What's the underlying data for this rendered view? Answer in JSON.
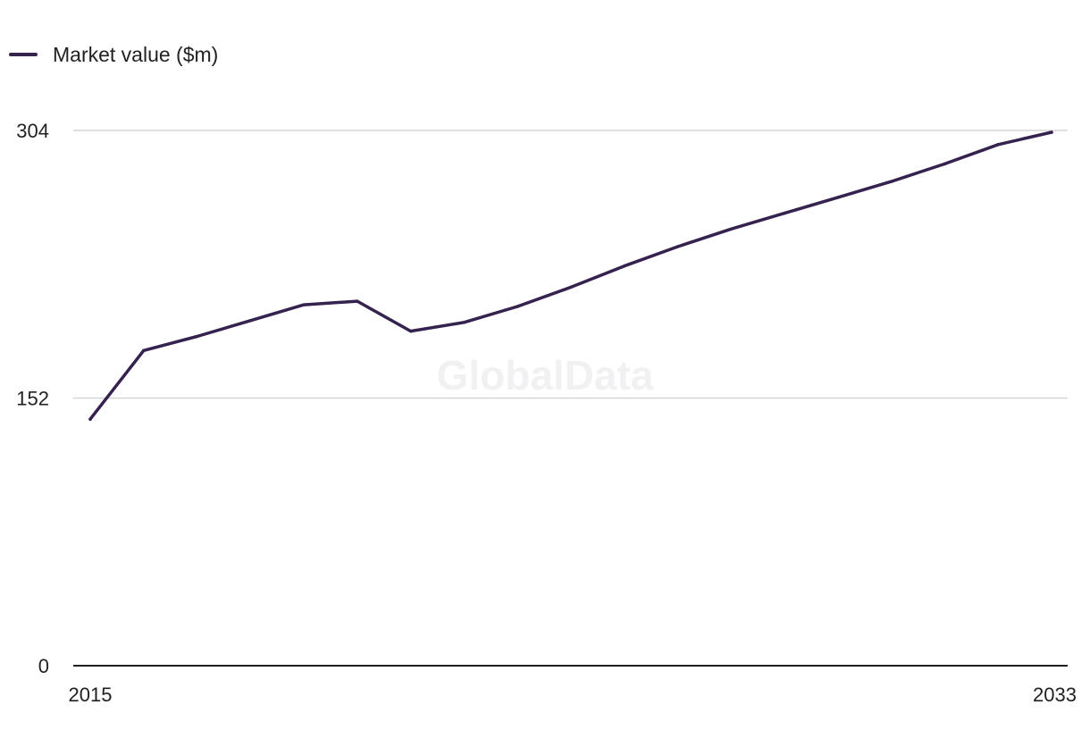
{
  "chart_data": {
    "type": "line",
    "title": "",
    "xlabel": "",
    "ylabel": "",
    "legend_position": "top-left",
    "grid": true,
    "ylim": [
      0,
      304
    ],
    "xlim": [
      2015,
      2033
    ],
    "y_ticks": [
      0,
      152,
      304
    ],
    "x_ticks": [
      2015,
      2033
    ],
    "x": [
      2015,
      2016,
      2017,
      2018,
      2019,
      2020,
      2021,
      2022,
      2023,
      2024,
      2025,
      2026,
      2027,
      2028,
      2029,
      2030,
      2031,
      2032,
      2033
    ],
    "series": [
      {
        "name": "Market value ($m)",
        "color": "#35224f",
        "values": [
          140,
          179,
          187,
          196,
          205,
          207,
          190,
          195,
          204,
          215,
          227,
          238,
          248,
          257,
          266,
          275,
          285,
          296,
          303
        ]
      }
    ],
    "watermark": "GlobalData",
    "colors": {
      "line": "#35224f",
      "gridline": "#d6d6d9",
      "axis": "#1f1f1f"
    }
  }
}
